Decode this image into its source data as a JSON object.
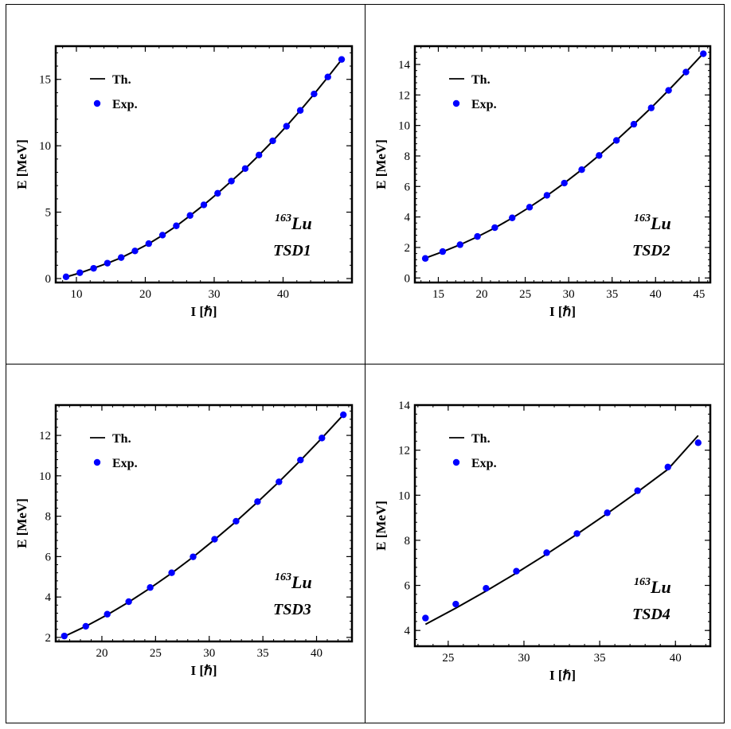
{
  "chart_data": [
    {
      "type": "line",
      "panel": "top-left",
      "xlabel": "I [ℏ]",
      "ylabel": "E [MeV]",
      "xlim": [
        7,
        50
      ],
      "ylim": [
        -0.3,
        17.5
      ],
      "xticks": [
        10,
        20,
        30,
        40
      ],
      "yticks": [
        0,
        5,
        10,
        15
      ],
      "legend": {
        "placement": "top-left",
        "line_label": "Th.",
        "marker_label": "Exp."
      },
      "nucleus": {
        "mass": "163",
        "symbol": "Lu"
      },
      "band": "TSD1",
      "series": [
        {
          "name": "Th.",
          "kind": "line",
          "color": "#000000",
          "x": [
            8.5,
            10.5,
            12.5,
            14.5,
            16.5,
            18.5,
            20.5,
            22.5,
            24.5,
            26.5,
            28.5,
            30.5,
            32.5,
            34.5,
            36.5,
            38.5,
            40.5,
            42.5,
            44.5,
            46.5,
            48.5
          ],
          "y": [
            0.12,
            0.42,
            0.78,
            1.15,
            1.57,
            2.08,
            2.62,
            3.26,
            3.95,
            4.74,
            5.55,
            6.42,
            7.34,
            8.27,
            9.29,
            10.36,
            11.48,
            12.66,
            13.89,
            15.17,
            16.48
          ]
        },
        {
          "name": "Exp.",
          "kind": "marker",
          "color": "#0000ff",
          "x": [
            8.5,
            10.5,
            12.5,
            14.5,
            16.5,
            18.5,
            20.5,
            22.5,
            24.5,
            26.5,
            28.5,
            30.5,
            32.5,
            34.5,
            36.5,
            38.5,
            40.5,
            42.5,
            44.5,
            46.5,
            48.5
          ],
          "y": [
            0.13,
            0.44,
            0.77,
            1.16,
            1.58,
            2.08,
            2.63,
            3.27,
            3.97,
            4.75,
            5.55,
            6.42,
            7.34,
            8.28,
            9.3,
            10.37,
            11.47,
            12.66,
            13.9,
            15.18,
            16.5
          ]
        }
      ]
    },
    {
      "type": "line",
      "panel": "top-right",
      "xlabel": "I [ℏ]",
      "ylabel": "E [MeV]",
      "xlim": [
        12.3,
        46.3
      ],
      "ylim": [
        -0.3,
        15.2
      ],
      "xticks": [
        15,
        20,
        25,
        30,
        35,
        40,
        45
      ],
      "yticks": [
        0,
        2,
        4,
        6,
        8,
        10,
        12,
        14
      ],
      "legend": {
        "placement": "top-left",
        "line_label": "Th.",
        "marker_label": "Exp."
      },
      "nucleus": {
        "mass": "163",
        "symbol": "Lu"
      },
      "band": "TSD2",
      "series": [
        {
          "name": "Th.",
          "kind": "line",
          "color": "#000000",
          "x": [
            13.5,
            15.5,
            17.5,
            19.5,
            21.5,
            23.5,
            25.5,
            27.5,
            29.5,
            31.5,
            33.5,
            35.5,
            37.5,
            39.5,
            41.5,
            43.5,
            45.5
          ],
          "y": [
            1.3,
            1.72,
            2.18,
            2.7,
            3.28,
            3.93,
            4.64,
            5.4,
            6.22,
            7.1,
            8.04,
            9.03,
            10.08,
            11.16,
            12.31,
            13.5,
            14.73
          ]
        },
        {
          "name": "Exp.",
          "kind": "marker",
          "color": "#0000ff",
          "x": [
            13.5,
            15.5,
            17.5,
            19.5,
            21.5,
            23.5,
            25.5,
            27.5,
            29.5,
            31.5,
            33.5,
            35.5,
            37.5,
            39.5,
            41.5,
            43.5,
            45.5
          ],
          "y": [
            1.28,
            1.73,
            2.18,
            2.72,
            3.3,
            3.94,
            4.64,
            5.42,
            6.22,
            7.1,
            8.03,
            9.02,
            10.08,
            11.15,
            12.3,
            13.5,
            14.7
          ]
        }
      ]
    },
    {
      "type": "line",
      "panel": "bottom-left",
      "xlabel": "I [ℏ]",
      "ylabel": "E [MeV]",
      "xlim": [
        15.7,
        43.3
      ],
      "ylim": [
        1.8,
        13.5
      ],
      "xticks": [
        20,
        25,
        30,
        35,
        40
      ],
      "yticks": [
        2,
        4,
        6,
        8,
        10,
        12
      ],
      "legend": {
        "placement": "top-left",
        "line_label": "Th.",
        "marker_label": "Exp."
      },
      "nucleus": {
        "mass": "163",
        "symbol": "Lu"
      },
      "band": "TSD3",
      "series": [
        {
          "name": "Th.",
          "kind": "line",
          "color": "#000000",
          "x": [
            16.5,
            18.5,
            20.5,
            22.5,
            24.5,
            26.5,
            28.5,
            30.5,
            32.5,
            34.5,
            36.5,
            38.5,
            40.5,
            42.5
          ],
          "y": [
            2.05,
            2.55,
            3.12,
            3.75,
            4.44,
            5.18,
            5.98,
            6.84,
            7.74,
            8.7,
            9.7,
            10.76,
            11.87,
            13.02
          ]
        },
        {
          "name": "Exp.",
          "kind": "marker",
          "color": "#0000ff",
          "x": [
            16.5,
            18.5,
            20.5,
            22.5,
            24.5,
            26.5,
            28.5,
            30.5,
            32.5,
            34.5,
            36.5,
            38.5,
            40.5,
            42.5
          ],
          "y": [
            2.07,
            2.55,
            3.15,
            3.77,
            4.47,
            5.2,
            5.99,
            6.86,
            7.75,
            8.72,
            9.7,
            10.78,
            11.87,
            13.02
          ]
        }
      ]
    },
    {
      "type": "line",
      "panel": "bottom-right",
      "xlabel": "I [ℏ]",
      "ylabel": "E [MeV]",
      "xlim": [
        22.8,
        42.3
      ],
      "ylim": [
        3.3,
        14.0
      ],
      "xticks": [
        25,
        30,
        35,
        40
      ],
      "yticks": [
        4,
        6,
        8,
        10,
        12,
        14
      ],
      "legend": {
        "placement": "top-left",
        "line_label": "Th.",
        "marker_label": "Exp."
      },
      "nucleus": {
        "mass": "163",
        "symbol": "Lu"
      },
      "band": "TSD4",
      "series": [
        {
          "name": "Th.",
          "kind": "line",
          "color": "#000000",
          "x": [
            23.5,
            25.5,
            27.5,
            29.5,
            31.5,
            33.5,
            35.5,
            37.5,
            39.5,
            41.5
          ],
          "y": [
            4.27,
            4.99,
            5.75,
            6.55,
            7.39,
            8.27,
            9.19,
            10.15,
            11.15,
            12.65
          ]
        },
        {
          "name": "Exp.",
          "kind": "marker",
          "color": "#0000ff",
          "x": [
            23.5,
            25.5,
            27.5,
            29.5,
            31.5,
            33.5,
            35.5,
            37.5,
            39.5,
            41.5
          ],
          "y": [
            4.55,
            5.17,
            5.87,
            6.63,
            7.45,
            8.3,
            9.22,
            10.2,
            11.25,
            12.33
          ]
        }
      ]
    }
  ]
}
